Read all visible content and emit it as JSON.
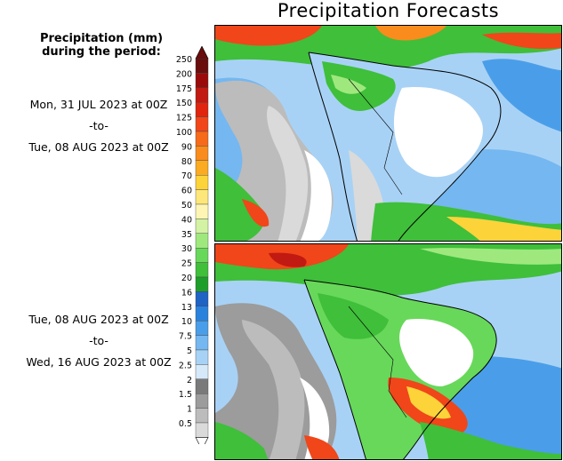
{
  "title": "Precipitation Forecasts",
  "legend": {
    "heading_line1": "Precipitation (mm)",
    "heading_line2": "during the period:",
    "levels": [
      "250",
      "200",
      "175",
      "150",
      "125",
      "100",
      "90",
      "80",
      "70",
      "60",
      "50",
      "40",
      "35",
      "30",
      "25",
      "20",
      "16",
      "13",
      "10",
      "7.5",
      "5",
      "2.5",
      "2",
      "1.5",
      "1",
      "0.5"
    ],
    "colors": [
      "#6a0d0d",
      "#9a0a0a",
      "#c01a12",
      "#e0240e",
      "#f0461a",
      "#f66a1a",
      "#f98c1c",
      "#fbab22",
      "#fdd33a",
      "#fde77a",
      "#fef5b4",
      "#d4f2a4",
      "#9fe87e",
      "#68d85a",
      "#3fbf3a",
      "#1d9e2a",
      "#1f63c4",
      "#2b82dd",
      "#4a9ee9",
      "#75b7f0",
      "#a8d2f5",
      "#d5e9f9",
      "#7a7a7a",
      "#9c9c9c",
      "#bcbcbc",
      "#dadada"
    ]
  },
  "periods": [
    {
      "start": "Mon, 31 JUL 2023 at 00Z",
      "sep": "-to-",
      "end": "Tue, 08 AUG 2023 at 00Z"
    },
    {
      "start": "Tue, 08 AUG 2023 at 00Z",
      "sep": "-to-",
      "end": "Wed, 16 AUG 2023 at 00Z"
    }
  ]
}
